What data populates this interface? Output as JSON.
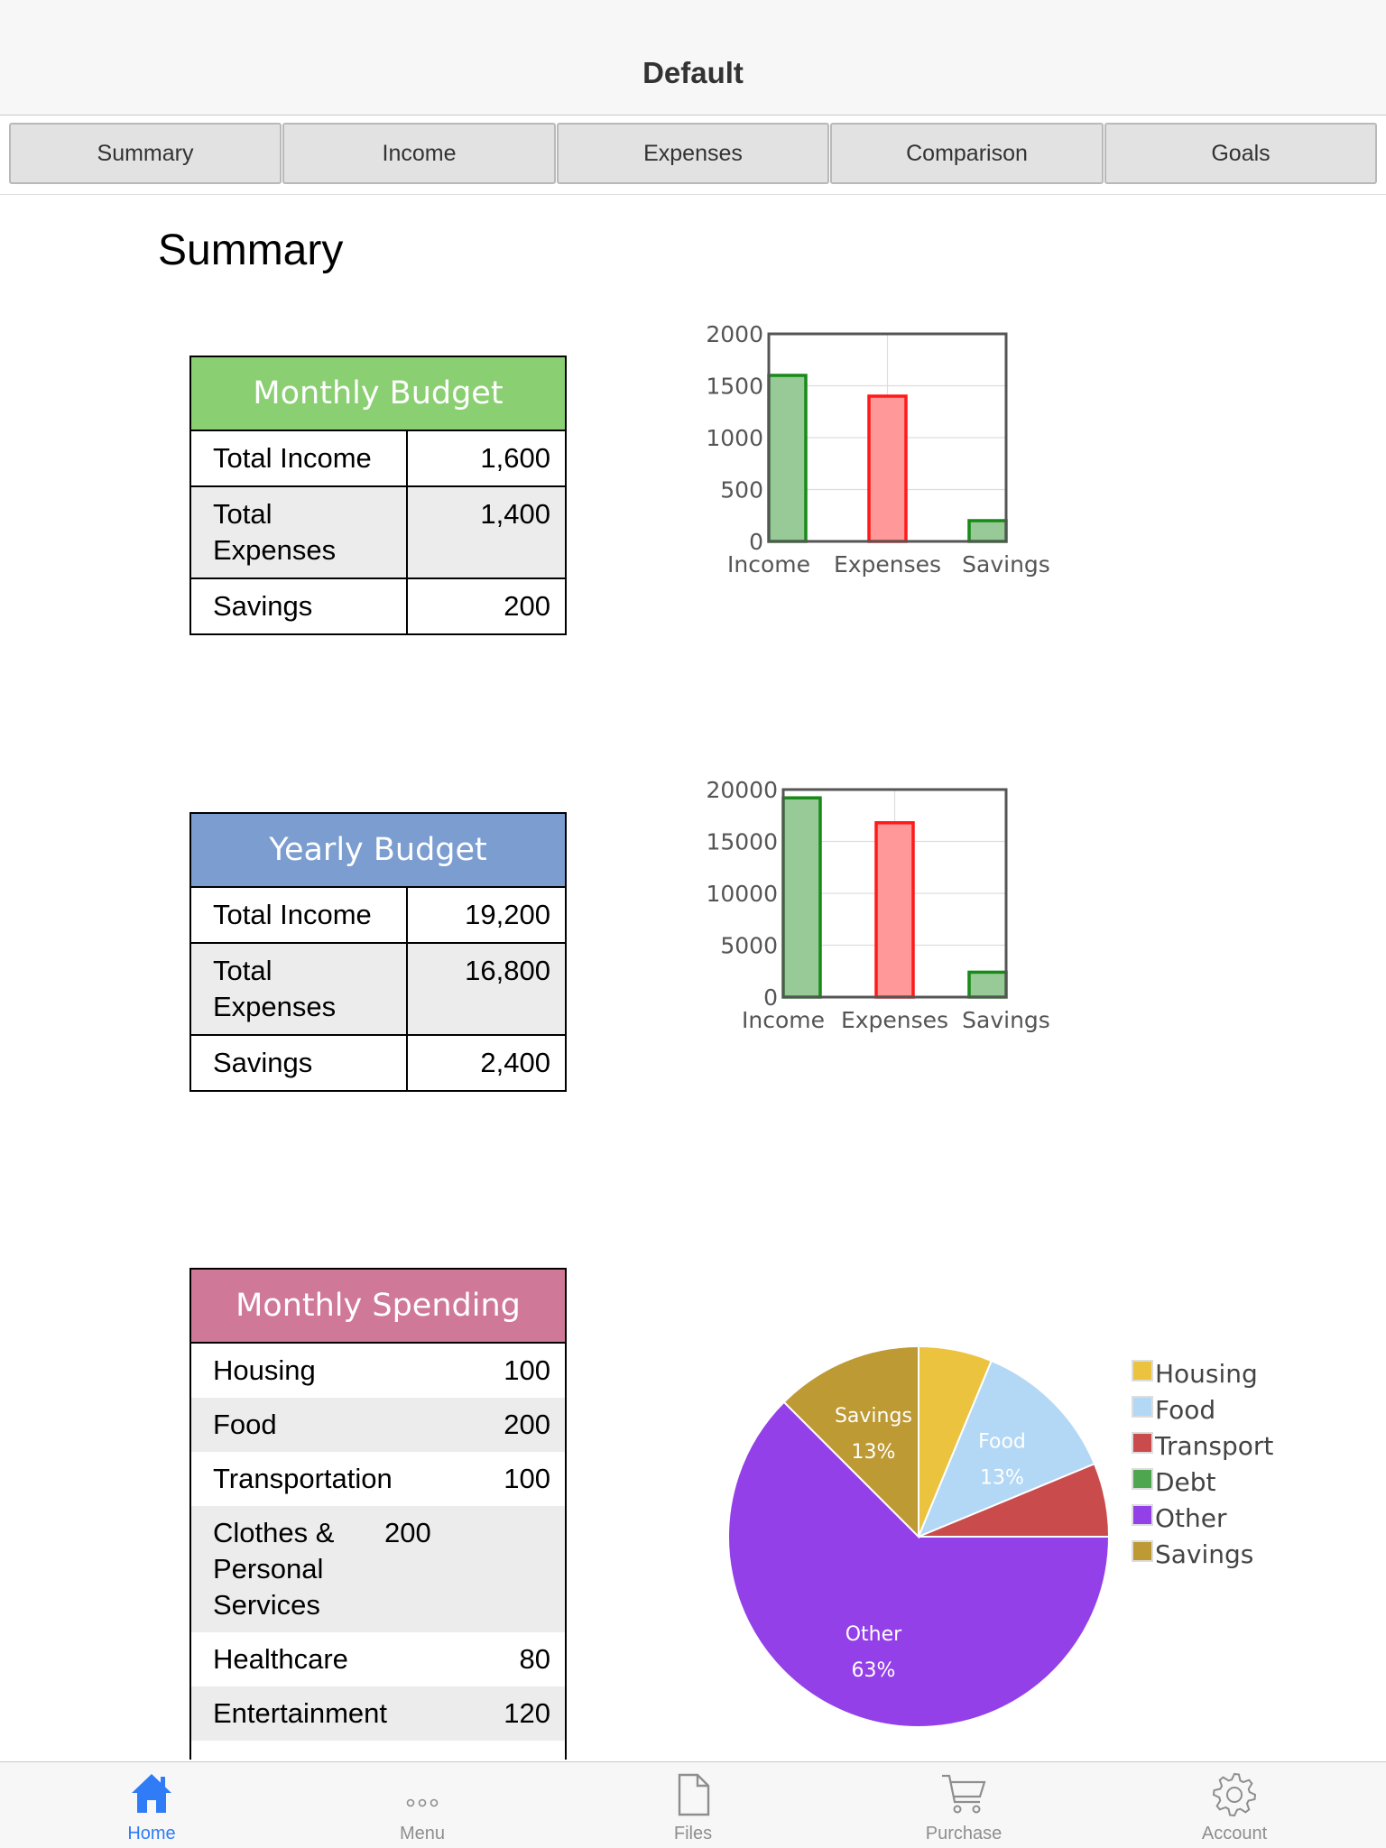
{
  "nav": {
    "title": "Default"
  },
  "tabs": [
    "Summary",
    "Income",
    "Expenses",
    "Comparison",
    "Goals"
  ],
  "page": {
    "heading": "Summary"
  },
  "monthly_budget": {
    "title": "Monthly Budget",
    "color": "#8acf72",
    "rows": [
      {
        "label": "Total Income",
        "value": "1,600"
      },
      {
        "label": "Total Expenses",
        "value": "1,400"
      },
      {
        "label": "Savings",
        "value": "200"
      }
    ]
  },
  "yearly_budget": {
    "title": "Yearly Budget",
    "color": "#7b9dcf",
    "rows": [
      {
        "label": "Total Income",
        "value": "19,200"
      },
      {
        "label": "Total Expenses",
        "value": "16,800"
      },
      {
        "label": "Savings",
        "value": "2,400"
      }
    ]
  },
  "monthly_spending": {
    "title": "Monthly Spending",
    "color": "#cf7898",
    "rows": [
      {
        "label": "Housing",
        "value": "100"
      },
      {
        "label": "Food",
        "value": "200"
      },
      {
        "label": "Transportation",
        "value": "100"
      },
      {
        "label": "Clothes & Personal Services",
        "value": "200"
      },
      {
        "label": "Healthcare",
        "value": "80"
      },
      {
        "label": "Entertainment",
        "value": "120"
      }
    ]
  },
  "chart_data": [
    {
      "type": "bar",
      "categories": [
        "Income",
        "Expenses",
        "Savings"
      ],
      "values": [
        1600,
        1400,
        200
      ],
      "colors": [
        "#178a17",
        "#ff1a1a",
        "#178a17"
      ],
      "ylim": [
        0,
        2000
      ],
      "yticks": [
        0,
        500,
        1000,
        1500,
        2000
      ],
      "grid": true
    },
    {
      "type": "bar",
      "categories": [
        "Income",
        "Expenses",
        "Savings"
      ],
      "values": [
        19200,
        16800,
        2400
      ],
      "colors": [
        "#178a17",
        "#ff1a1a",
        "#178a17"
      ],
      "ylim": [
        0,
        20000
      ],
      "yticks": [
        0,
        5000,
        10000,
        15000,
        20000
      ],
      "grid": true
    },
    {
      "type": "pie",
      "labels": [
        "Housing",
        "Food",
        "Transport",
        "Debt",
        "Other",
        "Savings"
      ],
      "values": [
        6.25,
        12.5,
        6.25,
        0,
        62.5,
        12.5
      ],
      "colors": [
        "#ecc33f",
        "#b3d8f6",
        "#c94b4b",
        "#4ea64e",
        "#9340e8",
        "#bd9a33"
      ],
      "slice_labels": [
        {
          "name": "Savings",
          "percent": "13%"
        },
        {
          "name": "Food",
          "percent": "13%"
        },
        {
          "name": "Other",
          "percent": "63%"
        }
      ],
      "legend": "right"
    }
  ],
  "bottom_tabs": [
    {
      "label": "Home",
      "icon": "home-icon",
      "active": true
    },
    {
      "label": "Menu",
      "icon": "more-icon",
      "active": false
    },
    {
      "label": "Files",
      "icon": "file-icon",
      "active": false
    },
    {
      "label": "Purchase",
      "icon": "cart-icon",
      "active": false
    },
    {
      "label": "Account",
      "icon": "gear-icon",
      "active": false
    }
  ],
  "accent": "#2f7cf6"
}
